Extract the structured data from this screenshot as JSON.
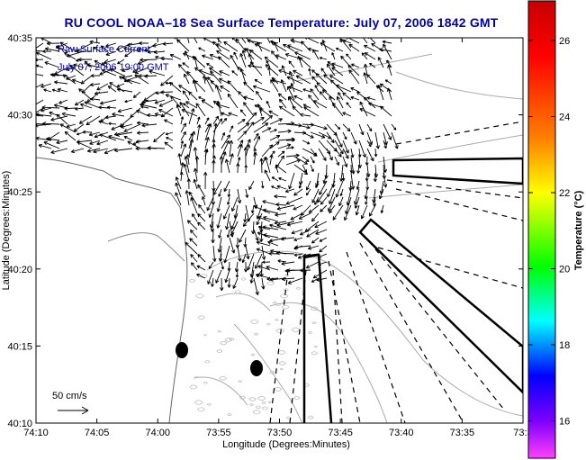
{
  "title": "RU COOL  NOAA–18  Sea Surface Temperature:  July 07, 2006 1842 GMT",
  "map": {
    "annotation_line1": "Raw Surface Current",
    "annotation_line2": "July 07, 2006 19:00 GMT",
    "scale_label": "50 cm/s",
    "xlabel": "Longitude (Degrees:Minutes)",
    "ylabel": "Latitude (Degrees:Minutes)",
    "x_ticks": [
      "74:10",
      "74:05",
      "74:00",
      "73:55",
      "73:50",
      "73:45",
      "73:40",
      "73:35",
      "73:3"
    ],
    "y_ticks": [
      "40:35",
      "40:30",
      "40:25",
      "40:20",
      "40:15",
      "40:10"
    ]
  },
  "colorbar": {
    "label": "Temperature (°C)",
    "ticks": [
      "26",
      "24",
      "22",
      "20",
      "18",
      "16"
    ],
    "colors": [
      "#c80000",
      "#ff0000",
      "#ff8000",
      "#ffff00",
      "#00ff00",
      "#00ffff",
      "#0000ff",
      "#8000ff",
      "#ff40ff"
    ]
  }
}
